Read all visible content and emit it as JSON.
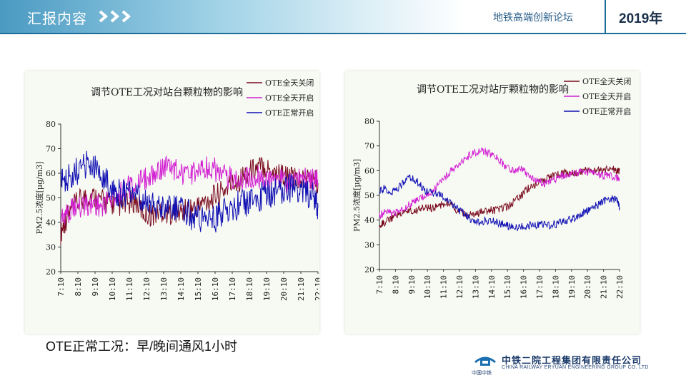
{
  "header": {
    "title": "汇报内容",
    "forum": "地铁高端创新论坛",
    "year": "2019年"
  },
  "caption": "OTE正常工况：早/晚间通风1小时",
  "footer": {
    "company_cn": "中铁二院工程集团有限责任公司",
    "company_en": "CHINA RAILWAY ERYUAN ENGINEERING GROUP CO. LTD",
    "logo_text": "中国中铁"
  },
  "colors": {
    "header_gradient_start": "#4a9ac2",
    "accent_line": "#1f6e9a",
    "series_closed": "#7a0a1e",
    "series_open": "#d21fd2",
    "series_normal": "#1010b4"
  },
  "chart_data": [
    {
      "type": "line",
      "title": "调节OTE工况对站台颗粒物的影响",
      "ylabel": "PM2.5浓度[μg/m3]",
      "ylim": [
        20,
        80
      ],
      "yticks": [
        20,
        30,
        40,
        50,
        60,
        70,
        80
      ],
      "xlim": [
        7.17,
        22.17
      ],
      "x_tick_labels": [
        "7:10",
        "8:10",
        "9:10",
        "10:10",
        "11:10",
        "12:10",
        "13:10",
        "14:10",
        "15:10",
        "16:10",
        "17:10",
        "18:10",
        "19:10",
        "20:10",
        "21:10",
        "22:10"
      ],
      "legend_position": "top-right",
      "series": [
        {
          "name": "OTE全天关闭",
          "color": "#7a0a1e",
          "x": [
            7.17,
            7.5,
            8,
            8.5,
            9,
            9.5,
            10,
            10.5,
            11,
            11.5,
            12,
            12.5,
            13,
            13.5,
            14,
            14.5,
            15,
            15.5,
            16,
            16.5,
            17,
            17.5,
            18,
            18.5,
            19,
            19.5,
            20,
            20.5,
            21,
            21.5,
            22,
            22.17
          ],
          "y": [
            36,
            42,
            47,
            50,
            51,
            49,
            48,
            47,
            47,
            49,
            44,
            43,
            45,
            44,
            44,
            45,
            46,
            48,
            50,
            52,
            55,
            57,
            60,
            62,
            63,
            61,
            60,
            58,
            57,
            58,
            57,
            56
          ]
        },
        {
          "name": "OTE全天开启",
          "color": "#d21fd2",
          "x": [
            7.17,
            7.5,
            8,
            8.5,
            9,
            9.5,
            10,
            10.5,
            11,
            11.5,
            12,
            12.5,
            13,
            13.5,
            14,
            14.5,
            15,
            15.5,
            16,
            16.5,
            17,
            17.5,
            18,
            18.5,
            19,
            19.5,
            20,
            20.5,
            21,
            21.5,
            22,
            22.17
          ],
          "y": [
            43,
            44,
            46,
            47,
            48,
            47,
            49,
            52,
            54,
            55,
            57,
            60,
            62,
            63,
            61,
            58,
            60,
            63,
            62,
            60,
            58,
            57,
            58,
            59,
            58,
            57,
            57,
            56,
            57,
            58,
            57,
            57
          ]
        },
        {
          "name": "OTE正常开启",
          "color": "#1010b4",
          "x": [
            7.17,
            7.5,
            8,
            8.5,
            9,
            9.5,
            10,
            10.5,
            11,
            11.5,
            12,
            12.5,
            13,
            13.5,
            14,
            14.5,
            15,
            15.5,
            16,
            16.5,
            17,
            17.5,
            18,
            18.5,
            19,
            19.5,
            20,
            20.5,
            21,
            21.5,
            22,
            22.17
          ],
          "y": [
            56,
            58,
            60,
            63,
            64,
            60,
            56,
            52,
            52,
            51,
            48,
            47,
            46,
            45,
            45,
            44,
            42,
            41,
            41,
            43,
            45,
            47,
            48,
            49,
            51,
            52,
            53,
            54,
            54,
            52,
            50,
            46
          ]
        }
      ]
    },
    {
      "type": "line",
      "title": "调节OTE工况对站厅颗粒物的影响",
      "ylabel": "PM2.5浓度[μg/m3]",
      "ylim": [
        20,
        80
      ],
      "yticks": [
        20,
        30,
        40,
        50,
        60,
        70,
        80
      ],
      "xlim": [
        7.17,
        22.17
      ],
      "x_tick_labels": [
        "7:10",
        "8:10",
        "9:10",
        "10:10",
        "11:10",
        "12:10",
        "13:10",
        "14:10",
        "15:10",
        "16:10",
        "17:10",
        "18:10",
        "19:10",
        "20:10",
        "21:10",
        "22:10"
      ],
      "legend_position": "top-right",
      "series": [
        {
          "name": "OTE全天关闭",
          "color": "#7a0a1e",
          "x": [
            7.17,
            7.5,
            8,
            8.5,
            9,
            9.5,
            10,
            10.5,
            11,
            11.5,
            12,
            12.5,
            13,
            13.5,
            14,
            14.5,
            15,
            15.5,
            16,
            16.5,
            17,
            17.5,
            18,
            18.5,
            19,
            19.5,
            20,
            20.5,
            21,
            21.5,
            22,
            22.17
          ],
          "y": [
            38,
            39,
            41,
            43,
            44,
            44,
            45,
            45,
            46,
            47,
            44,
            42,
            42,
            43,
            44,
            44,
            45,
            47,
            50,
            53,
            55,
            56,
            58,
            59,
            59,
            59,
            60,
            60,
            60,
            61,
            60,
            60
          ]
        },
        {
          "name": "OTE全天开启",
          "color": "#d21fd2",
          "x": [
            7.17,
            7.5,
            8,
            8.5,
            9,
            9.5,
            10,
            10.5,
            11,
            11.5,
            12,
            12.5,
            13,
            13.5,
            14,
            14.5,
            15,
            15.5,
            16,
            16.5,
            17,
            17.5,
            18,
            18.5,
            19,
            19.5,
            20,
            20.5,
            21,
            21.5,
            22,
            22.17
          ],
          "y": [
            42,
            43,
            43,
            44,
            46,
            48,
            50,
            52,
            55,
            59,
            62,
            65,
            67,
            68,
            67,
            65,
            62,
            60,
            61,
            58,
            56,
            55,
            56,
            58,
            58,
            59,
            60,
            59,
            58,
            58,
            57,
            57
          ]
        },
        {
          "name": "OTE正常开启",
          "color": "#1010b4",
          "x": [
            7.17,
            7.5,
            8,
            8.5,
            9,
            9.5,
            10,
            10.5,
            11,
            11.5,
            12,
            12.5,
            13,
            13.5,
            14,
            14.5,
            15,
            15.5,
            16,
            16.5,
            17,
            17.5,
            18,
            18.5,
            19,
            19.5,
            20,
            20.5,
            21,
            21.5,
            22,
            22.17
          ],
          "y": [
            52,
            53,
            51,
            54,
            58,
            56,
            52,
            51,
            50,
            48,
            45,
            42,
            40,
            39,
            40,
            39,
            38,
            37,
            37,
            38,
            38,
            38,
            38,
            39,
            40,
            41,
            43,
            45,
            47,
            49,
            48,
            45
          ]
        }
      ]
    }
  ]
}
